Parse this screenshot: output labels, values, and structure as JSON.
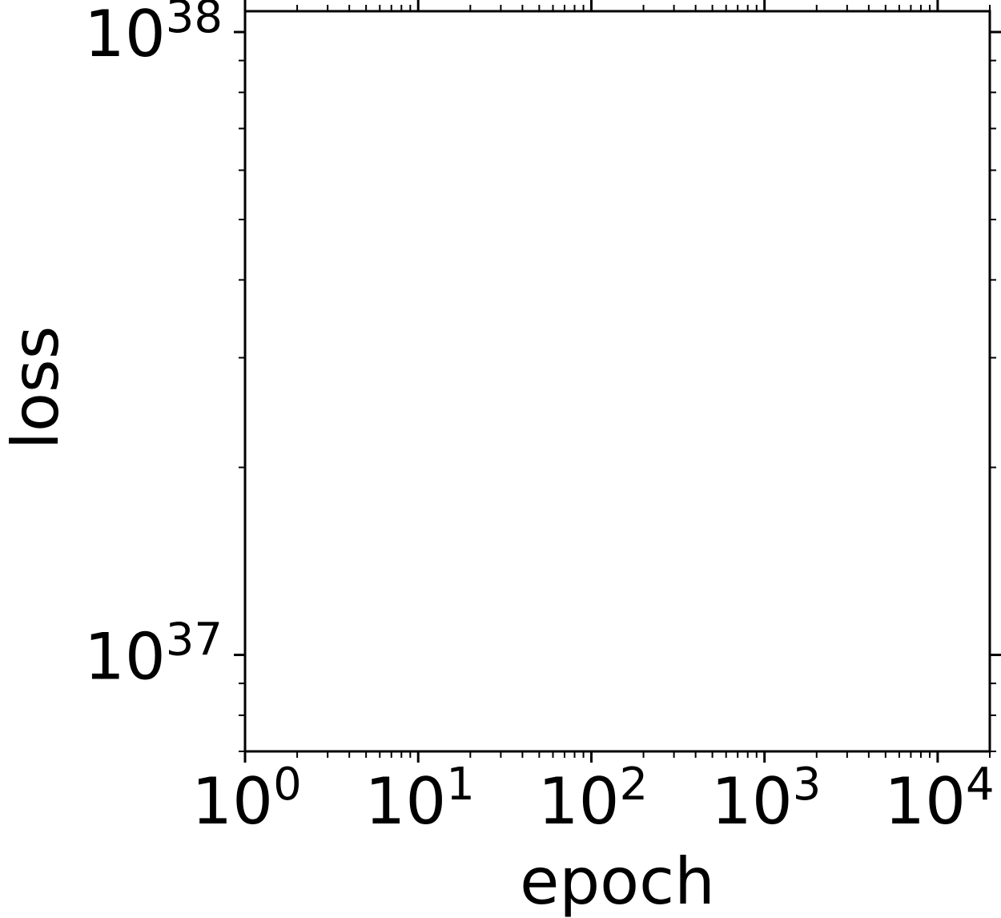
{
  "chart_data": {
    "type": "line",
    "title": "",
    "xlabel": "epoch",
    "ylabel": "loss",
    "x_scale": "log",
    "y_scale": "log",
    "xlim": [
      1,
      20000
    ],
    "ylim": [
      7e+36,
      1.08e+38
    ],
    "x_ticks": [
      {
        "value": 1,
        "base": "10",
        "exp": "0"
      },
      {
        "value": 10,
        "base": "10",
        "exp": "1"
      },
      {
        "value": 100,
        "base": "10",
        "exp": "2"
      },
      {
        "value": 1000,
        "base": "10",
        "exp": "3"
      },
      {
        "value": 10000,
        "base": "10",
        "exp": "4"
      }
    ],
    "y_ticks": [
      {
        "value": 1e+37,
        "base": "10",
        "exp": "37"
      },
      {
        "value": 1e+38,
        "base": "10",
        "exp": "38"
      }
    ],
    "series": [],
    "grid": false,
    "legend": "none",
    "colors": {
      "axes": "#000000",
      "background": "#ffffff"
    }
  }
}
